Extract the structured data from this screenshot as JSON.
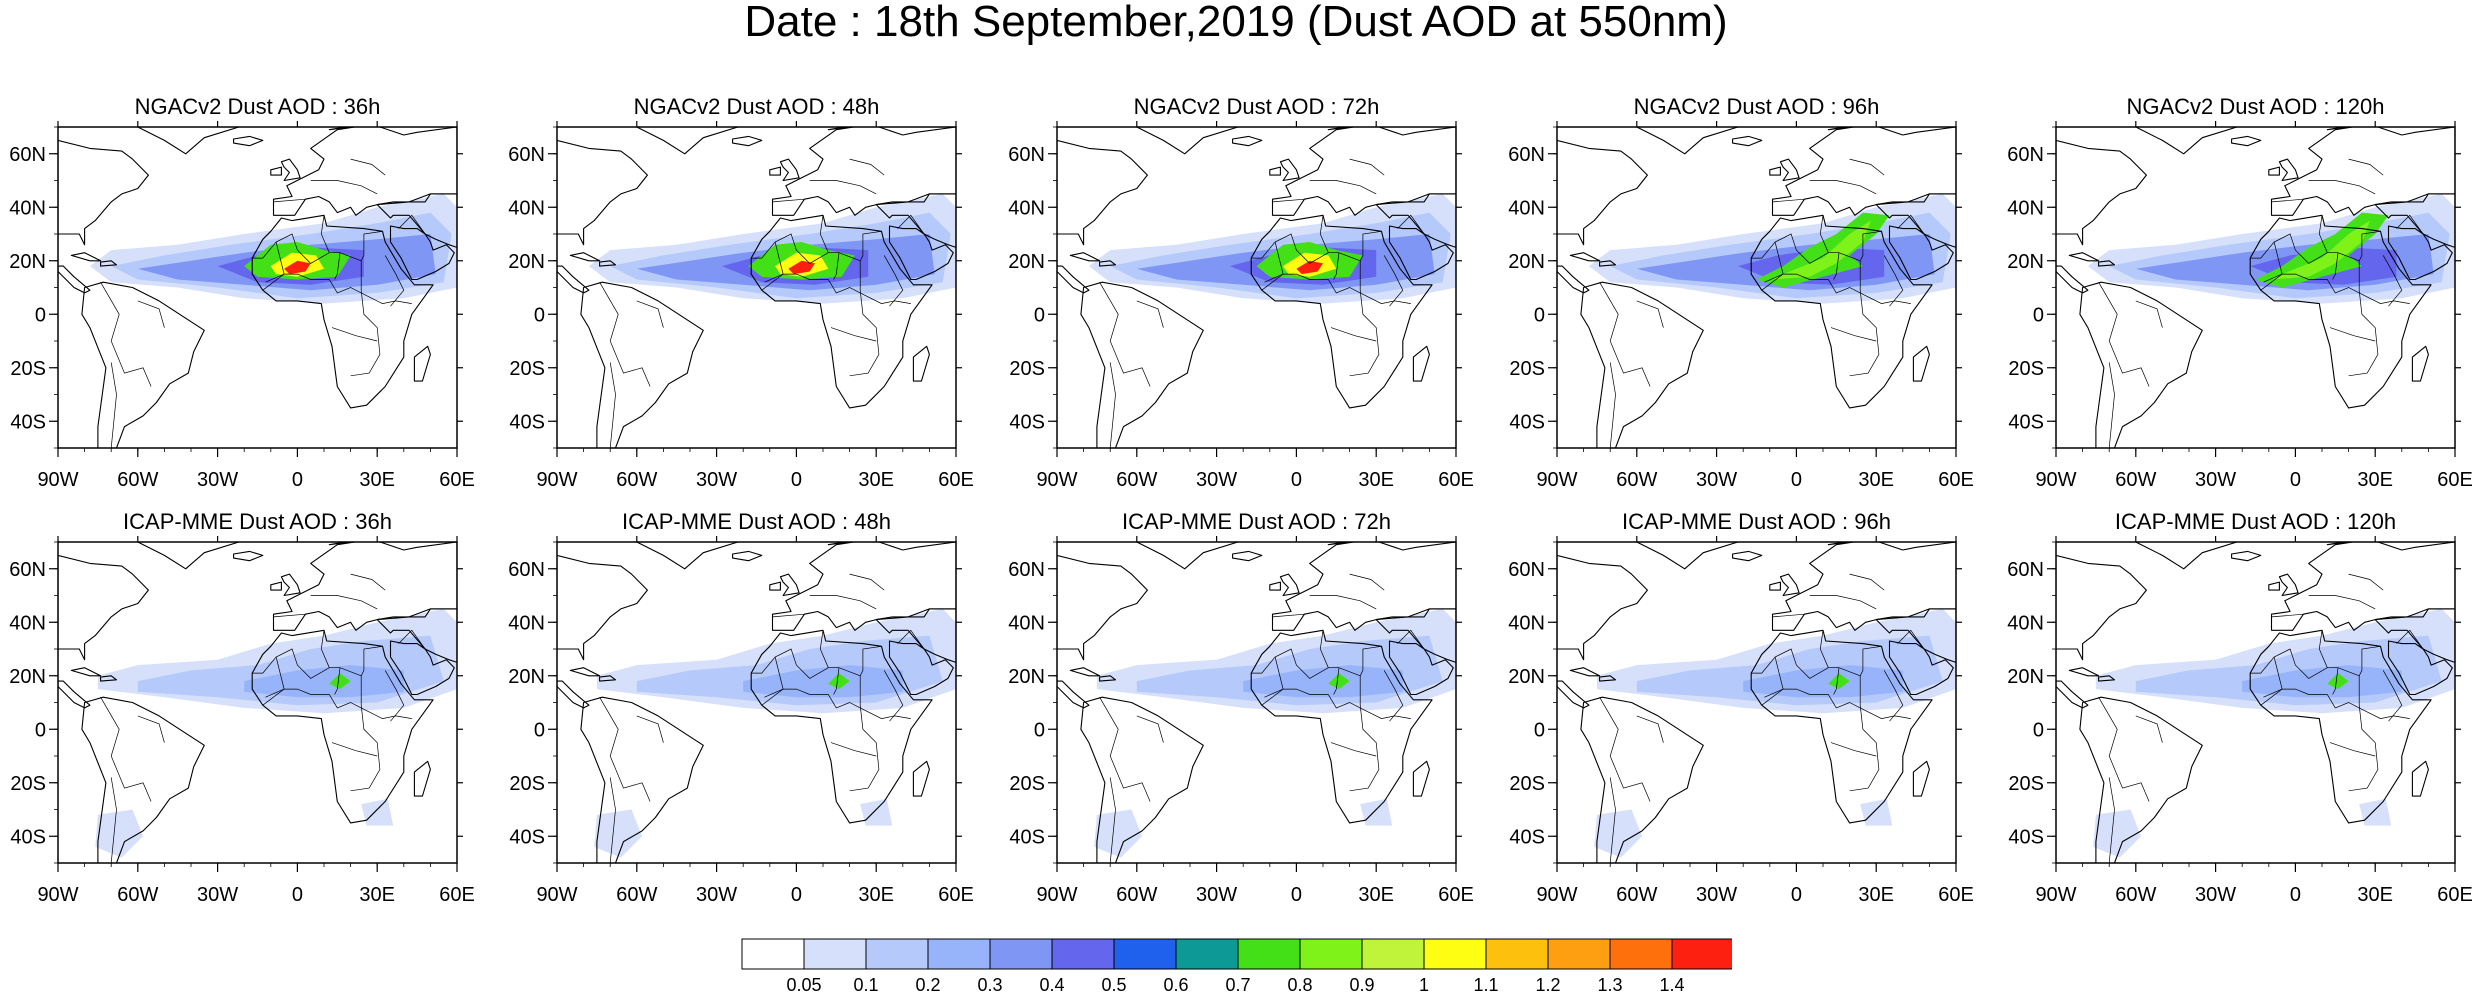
{
  "title": "Date : 18th September,2019 (Dust AOD at 550nm)",
  "panels": [
    {
      "title": "NGACv2 Dust AOD : 36h",
      "model": "NGACv2",
      "lead": "36h",
      "plume_x": [
        -60,
        -40,
        -20,
        0,
        20,
        40
      ],
      "max_aod": 1.4
    },
    {
      "title": "NGACv2 Dust AOD : 48h",
      "model": "NGACv2",
      "lead": "48h",
      "plume_x": [
        -60,
        -40,
        -20,
        0,
        20,
        40
      ],
      "max_aod": 1.4
    },
    {
      "title": "NGACv2 Dust AOD : 72h",
      "model": "NGACv2",
      "lead": "72h",
      "plume_x": [
        -60,
        -40,
        -20,
        0,
        20,
        40
      ],
      "max_aod": 1.4
    },
    {
      "title": "NGACv2 Dust AOD : 96h",
      "model": "NGACv2",
      "lead": "96h",
      "plume_x": [
        -60,
        -40,
        -20,
        0,
        20,
        40
      ],
      "max_aod": 0.9
    },
    {
      "title": "NGACv2 Dust AOD : 120h",
      "model": "NGACv2",
      "lead": "120h",
      "plume_x": [
        -60,
        -40,
        -20,
        0,
        20,
        40
      ],
      "max_aod": 0.9
    },
    {
      "title": "ICAP-MME Dust AOD : 36h",
      "model": "ICAP-MME",
      "lead": "36h",
      "plume_x": [
        -60,
        -40,
        -20,
        0,
        20,
        40
      ],
      "max_aod": 0.8
    },
    {
      "title": "ICAP-MME Dust AOD : 48h",
      "model": "ICAP-MME",
      "lead": "48h",
      "plume_x": [
        -60,
        -40,
        -20,
        0,
        20,
        40
      ],
      "max_aod": 0.8
    },
    {
      "title": "ICAP-MME Dust AOD : 72h",
      "model": "ICAP-MME",
      "lead": "72h",
      "plume_x": [
        -60,
        -40,
        -20,
        0,
        20,
        40
      ],
      "max_aod": 0.8
    },
    {
      "title": "ICAP-MME Dust AOD : 96h",
      "model": "ICAP-MME",
      "lead": "96h",
      "plume_x": [
        -60,
        -40,
        -20,
        0,
        20,
        40
      ],
      "max_aod": 0.8
    },
    {
      "title": "ICAP-MME Dust AOD : 120h",
      "model": "ICAP-MME",
      "lead": "120h",
      "plume_x": [
        -60,
        -40,
        -20,
        0,
        20,
        40
      ],
      "max_aod": 0.8
    }
  ],
  "map_extent": {
    "lon": [
      -90,
      60
    ],
    "lat": [
      -50,
      70
    ]
  },
  "lon_ticks": [
    "90W",
    "60W",
    "30W",
    "0",
    "30E",
    "60E"
  ],
  "lat_ticks": [
    "60N",
    "40N",
    "20N",
    "0",
    "20S",
    "40S"
  ],
  "colorbar": {
    "colors": [
      "#ffffff",
      "#d6e0fb",
      "#b5c9fa",
      "#97b4fa",
      "#7f96f5",
      "#6466ed",
      "#1f60ed",
      "#0d9a96",
      "#43e018",
      "#7ff21a",
      "#bff43a",
      "#fdfe12",
      "#fdc10d",
      "#fd9f10",
      "#fd700b",
      "#fd2010"
    ],
    "labels": [
      "0.05",
      "0.1",
      "0.2",
      "0.3",
      "0.4",
      "0.5",
      "0.6",
      "0.7",
      "0.8",
      "0.9",
      "1",
      "1.1",
      "1.2",
      "1.3",
      "1.4"
    ]
  },
  "colors": {
    "coastline": "#000000",
    "background": "#ffffff"
  }
}
